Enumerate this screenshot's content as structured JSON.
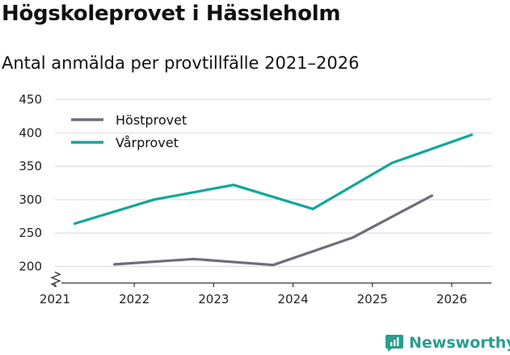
{
  "header": {
    "title": "Högskoleprovet i Hässleholm",
    "subtitle": "Antal anmälda per provtillfälle 2021–2026"
  },
  "brand": {
    "name": "Newsworthy",
    "color": "#2a9d8f"
  },
  "chart_data": {
    "type": "line",
    "x_ticks": [
      "2021",
      "2022",
      "2023",
      "2024",
      "2025",
      "2026"
    ],
    "y_ticks": [
      200,
      250,
      300,
      350,
      400,
      450
    ],
    "ylim": [
      175,
      450
    ],
    "xlim": [
      2021,
      2026.5
    ],
    "y_axis_break": true,
    "grid": true,
    "legend": "top-left",
    "series": [
      {
        "name": "Höstprovet",
        "color": "#6e6e78",
        "x": [
          2021.75,
          2022.75,
          2023.75,
          2024.75,
          2025.75
        ],
        "values": [
          203,
          211,
          202,
          243,
          306
        ]
      },
      {
        "name": "Vårprovet",
        "color": "#0fa79a",
        "x": [
          2021.25,
          2022.25,
          2023.25,
          2024.25,
          2025.25,
          2026.25
        ],
        "values": [
          264,
          300,
          322,
          286,
          355,
          397
        ]
      }
    ]
  }
}
